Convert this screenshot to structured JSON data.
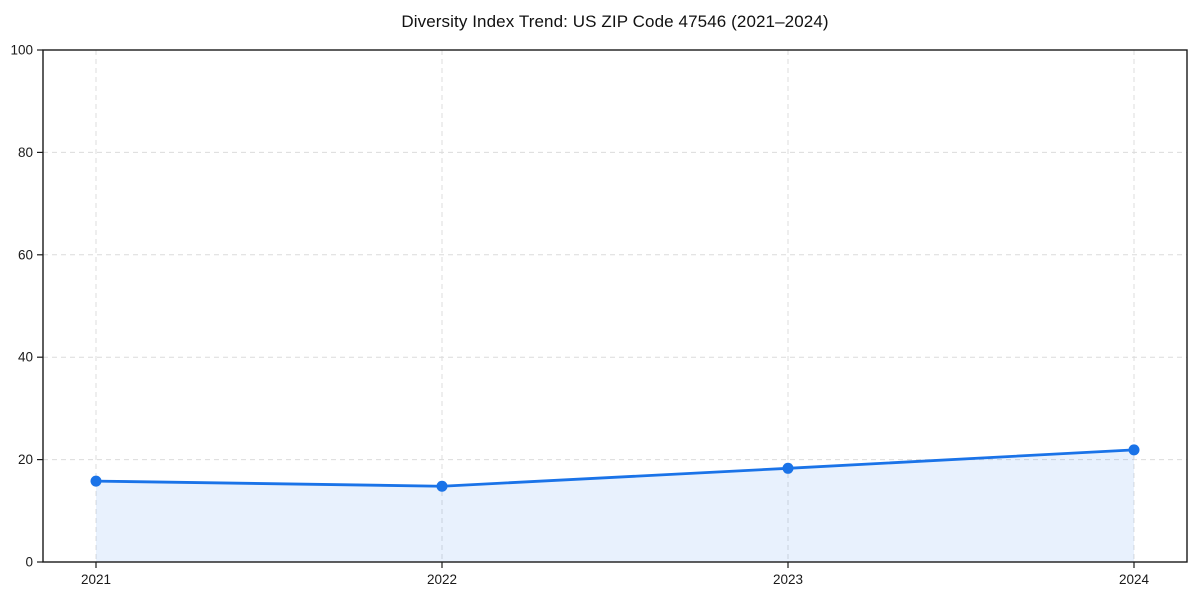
{
  "chart_data": {
    "type": "area",
    "title": "Diversity Index Trend: US ZIP Code 47546 (2021–2024)",
    "categories": [
      "2021",
      "2022",
      "2023",
      "2024"
    ],
    "x": [
      2021,
      2022,
      2023,
      2024
    ],
    "values": [
      15.8,
      14.8,
      18.3,
      21.9
    ],
    "series_name": "Diversity Index",
    "xlabel": "",
    "ylabel": "",
    "ylim": [
      0,
      100
    ],
    "yticks": [
      0,
      20,
      40,
      60,
      80,
      100
    ],
    "grid": true,
    "grid_style": "dashed",
    "legend": "none",
    "line_color": "#1a73e8",
    "marker_color": "#1a73e8",
    "fill_color": "#1a73e8",
    "fill_opacity": 0.1,
    "marker": "circle",
    "background_color": "#ffffff"
  }
}
